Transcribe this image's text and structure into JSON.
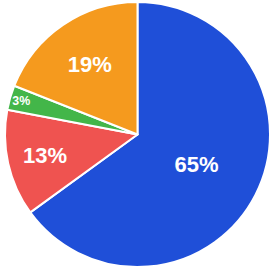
{
  "chart_data": {
    "type": "pie",
    "values": [
      65,
      13,
      3,
      19
    ],
    "value_labels": [
      "65%",
      "13%",
      "3%",
      "19%"
    ],
    "colors": [
      "#1f4fd8",
      "#ef5350",
      "#43b649",
      "#f59a1e"
    ],
    "data_labels": true
  }
}
